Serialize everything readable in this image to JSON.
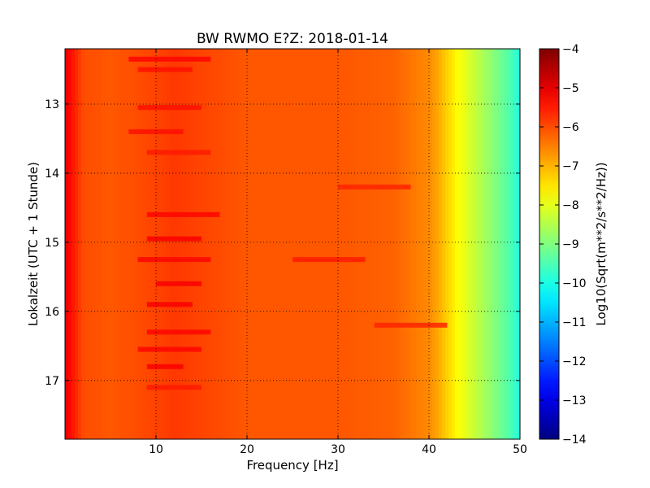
{
  "chart_data": {
    "type": "heatmap",
    "title": "BW RWMO E?Z: 2018-01-14",
    "xlabel": "Frequency [Hz]",
    "ylabel": "Lokalzeit (UTC + 1 Stunde)",
    "xlim": [
      0,
      50
    ],
    "ylim": [
      12.2,
      17.85
    ],
    "x_ticks": [
      10,
      20,
      30,
      40,
      50
    ],
    "x_tick_labels": [
      "10",
      "20",
      "30",
      "40",
      "50"
    ],
    "y_ticks": [
      13,
      14,
      15,
      16,
      17
    ],
    "y_tick_labels": [
      "13",
      "14",
      "15",
      "16",
      "17"
    ],
    "y_inverted": true,
    "grid": true,
    "colormap": "jet",
    "colorbar": {
      "label": "Log10(Sqrt(m**2/s**2/Hz))",
      "range": [
        -14,
        -4
      ],
      "ticks": [
        -4,
        -5,
        -6,
        -7,
        -8,
        -9,
        -10,
        -11,
        -12,
        -13,
        -14
      ],
      "tick_labels": [
        "−4",
        "−5",
        "−6",
        "−7",
        "−8",
        "−9",
        "−10",
        "−11",
        "−12",
        "−13",
        "−14"
      ]
    },
    "spectrum_profile": {
      "frequency_hz": [
        0,
        0.5,
        2,
        5,
        8,
        12,
        20,
        30,
        36,
        38,
        40,
        41,
        42,
        43,
        44,
        45,
        46,
        47,
        48,
        49,
        50
      ],
      "level": [
        -5.0,
        -5.3,
        -6.0,
        -6.1,
        -6.0,
        -5.8,
        -6.1,
        -6.1,
        -6.2,
        -6.4,
        -6.6,
        -6.9,
        -7.3,
        -7.7,
        -8.0,
        -8.3,
        -8.6,
        -8.9,
        -9.2,
        -9.5,
        -10.0
      ]
    },
    "bands": [
      {
        "time": 12.35,
        "freq_from": 7,
        "freq_to": 16,
        "level": -5.3
      },
      {
        "time": 12.5,
        "freq_from": 8,
        "freq_to": 14,
        "level": -5.4
      },
      {
        "time": 13.05,
        "freq_from": 8,
        "freq_to": 15,
        "level": -5.4
      },
      {
        "time": 13.4,
        "freq_from": 7,
        "freq_to": 13,
        "level": -5.4
      },
      {
        "time": 13.7,
        "freq_from": 9,
        "freq_to": 16,
        "level": -5.5
      },
      {
        "time": 14.2,
        "freq_from": 30,
        "freq_to": 38,
        "level": -5.6
      },
      {
        "time": 14.6,
        "freq_from": 9,
        "freq_to": 17,
        "level": -5.3
      },
      {
        "time": 14.95,
        "freq_from": 9,
        "freq_to": 15,
        "level": -5.2
      },
      {
        "time": 15.25,
        "freq_from": 8,
        "freq_to": 16,
        "level": -5.3
      },
      {
        "time": 15.25,
        "freq_from": 25,
        "freq_to": 33,
        "level": -5.5
      },
      {
        "time": 15.6,
        "freq_from": 10,
        "freq_to": 15,
        "level": -5.2
      },
      {
        "time": 15.9,
        "freq_from": 9,
        "freq_to": 14,
        "level": -5.2
      },
      {
        "time": 16.2,
        "freq_from": 34,
        "freq_to": 42,
        "level": -5.6
      },
      {
        "time": 16.3,
        "freq_from": 9,
        "freq_to": 16,
        "level": -5.3
      },
      {
        "time": 16.55,
        "freq_from": 8,
        "freq_to": 15,
        "level": -5.3
      },
      {
        "time": 16.8,
        "freq_from": 9,
        "freq_to": 13,
        "level": -5.2
      },
      {
        "time": 17.1,
        "freq_from": 9,
        "freq_to": 15,
        "level": -5.5
      }
    ]
  }
}
